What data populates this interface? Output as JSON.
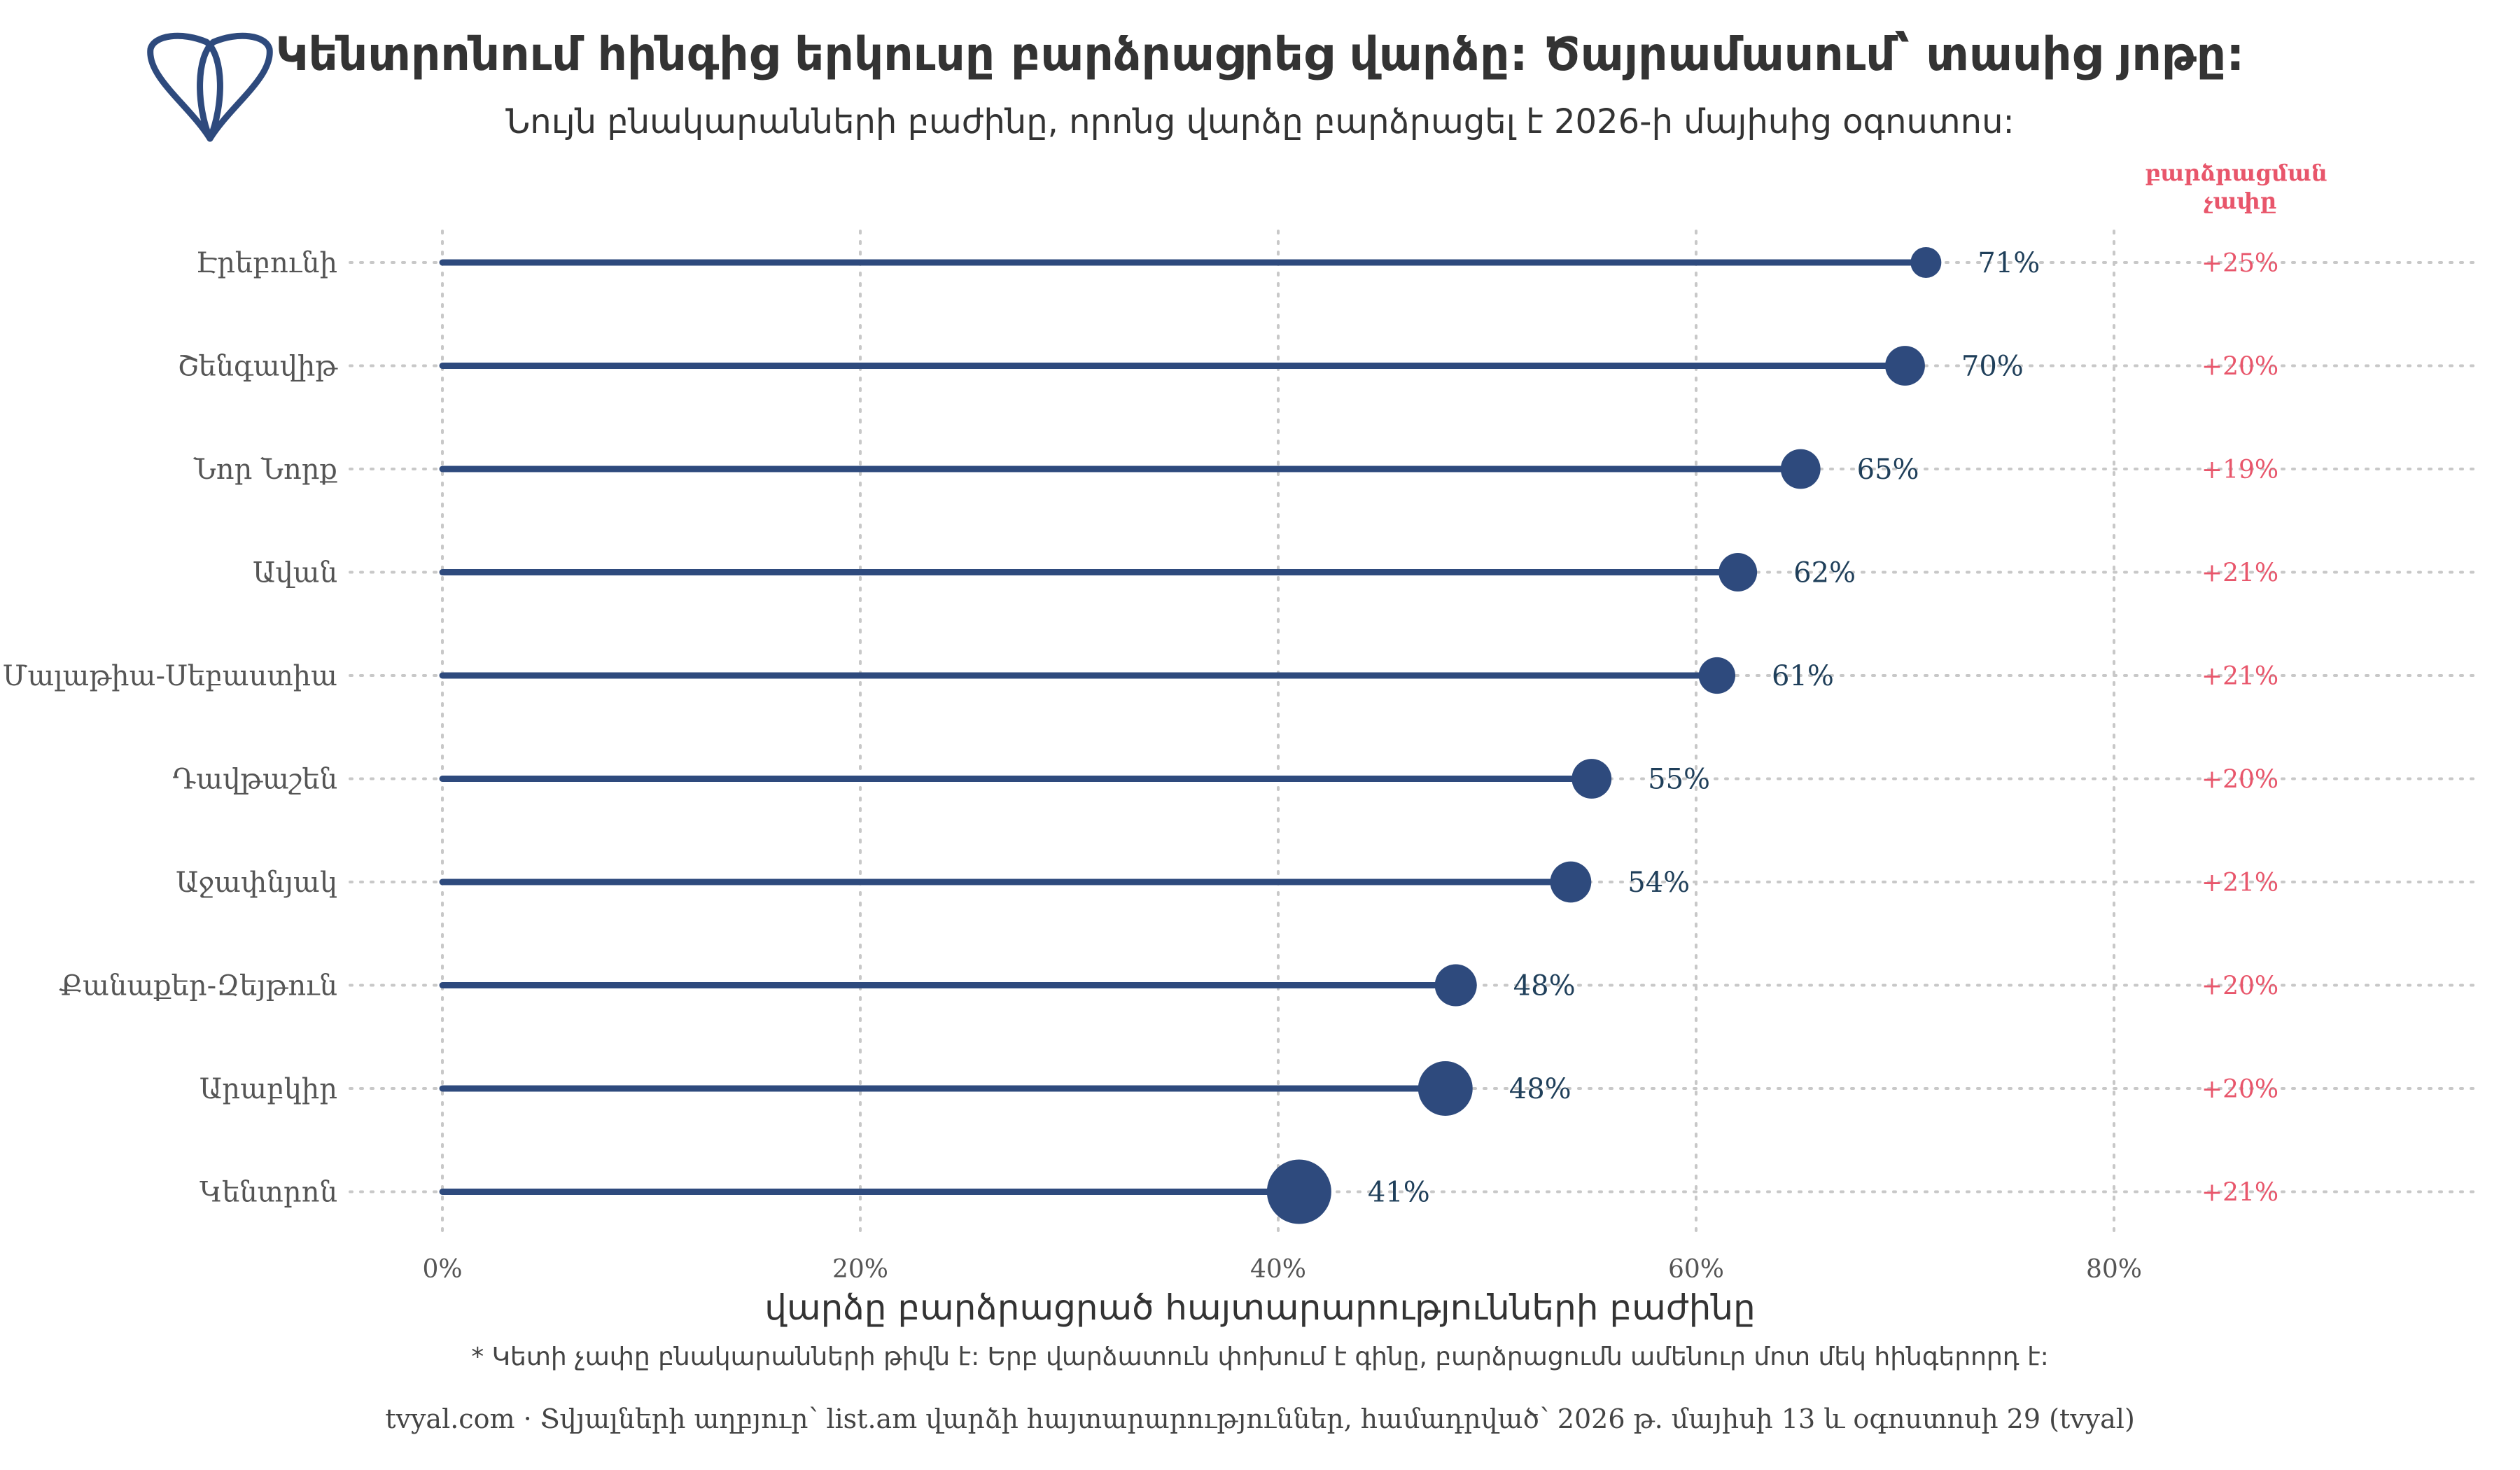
{
  "title": "Կենտրոնում հինգից երկուսը բարձրացրեց վարձը: Ծայրամասում՝ տասից յոթը:",
  "subtitle": "Նույն բնակարանների բաժինը, որոնց վարձը բարձրացել է 2026-ի մայիսից օգոստոս:",
  "rise_header": [
    "բարձրացման",
    "չափը"
  ],
  "colors": {
    "stem": "#2e4a7d",
    "dot": "#2e4a7d",
    "value": "#1f3f5a",
    "rise": "#e8566b",
    "grid": "#c8c8c8"
  },
  "logo_icon": "tvyal-logo-icon",
  "chart_data": {
    "type": "lollipop",
    "title": "Կենտրոնում հինգից երկուսը բարձրացրեց վարձը: Ծայրամասում՝ տասից յոթը:",
    "subtitle": "Նույն բնակարանների բաժինը, որոնց վարձը բարձրացել է 2026-ի մայիսից օգոստոս:",
    "xlabel": "վարձը բարձրացրած հայտարարությունների բաժինը",
    "xlim": [
      0,
      100
    ],
    "xticks": [
      0,
      20,
      40,
      60,
      80
    ],
    "xtick_labels": [
      "0%",
      "20%",
      "40%",
      "60%",
      "80%"
    ],
    "grid": true,
    "categories": [
      "Էրեբունի",
      "Շենգավիթ",
      "Նոր Նորք",
      "Ավան",
      "Մալաթիա-Սեբաստիա",
      "Դավթաշեն",
      "Աջափնյակ",
      "Քանաքեր-Զեյթուն",
      "Արաբկիր",
      "Կենտրոն"
    ],
    "values": [
      71,
      70,
      65,
      62,
      61,
      55,
      54,
      48.5,
      48,
      41
    ],
    "value_labels": [
      "71%",
      "70%",
      "65%",
      "62%",
      "61%",
      "55%",
      "54%",
      "48%",
      "48%",
      "41%"
    ],
    "dot_size_relative": [
      0.25,
      0.45,
      0.45,
      0.42,
      0.38,
      0.45,
      0.48,
      0.5,
      0.78,
      1.0
    ],
    "rise_labels": [
      "+25%",
      "+20%",
      "+19%",
      "+21%",
      "+21%",
      "+20%",
      "+21%",
      "+20%",
      "+20%",
      "+21%"
    ]
  },
  "footnote": "* Կետի չափը բնակարանների թիվն է: Երբ վարձատուն փոխում է գինը, բարձրացումն ամենուր մոտ մեկ հինգերորդ է:",
  "source": "tvyal.com  ·  Տվյալների աղբյուր՝ list.am վարձի հայտարարություններ, համադրված՝ 2026 թ. մայիսի 13 և օգոստոսի 29 (tvyal)"
}
